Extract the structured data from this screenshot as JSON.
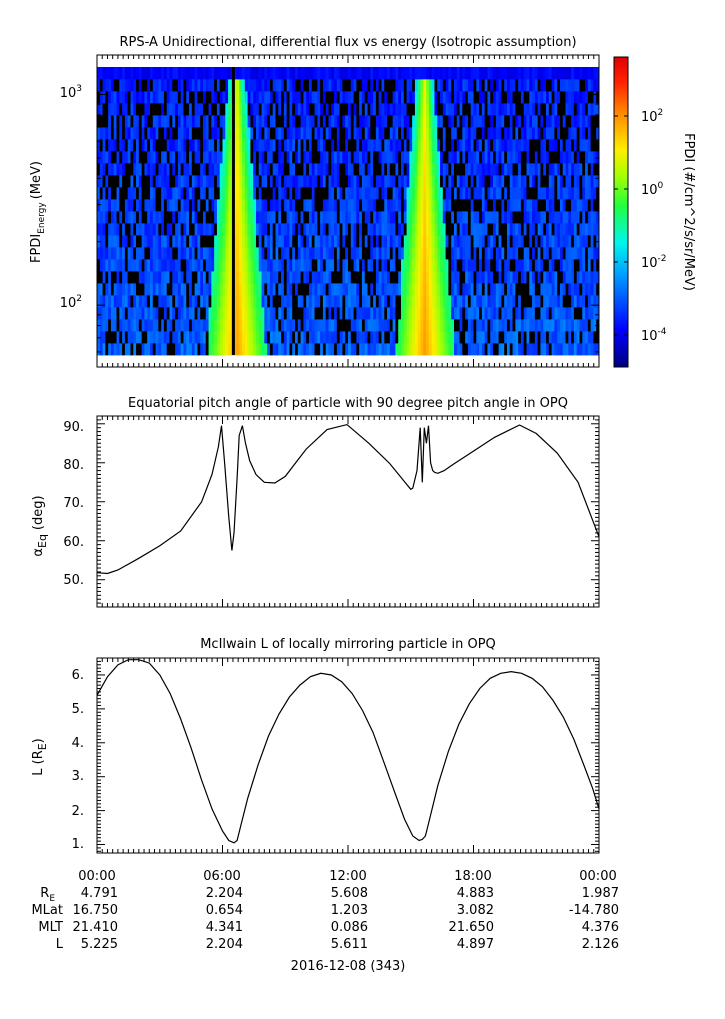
{
  "panels": [
    {
      "title": "RPS-A Unidirectional, differential flux vs energy (Isotropic assumption)",
      "ylabel_main": "FPDI",
      "ylabel_sub": "Energy",
      "ylabel_unit": "(MeV)",
      "ytick_labels": [
        {
          "base": "10",
          "exp": "3"
        },
        {
          "base": "10",
          "exp": "2"
        }
      ],
      "colorbar_label": "FPDI (#/cm^2/s/sr/MeV)",
      "colorbar_ticks": [
        {
          "base": "10",
          "exp": "2"
        },
        {
          "base": "10",
          "exp": "0"
        },
        {
          "base": "10",
          "exp": "-2"
        },
        {
          "base": "10",
          "exp": "-4"
        }
      ]
    },
    {
      "title": "Equatorial pitch angle of particle with 90 degree pitch angle in OPQ",
      "ylabel_main": "α",
      "ylabel_sub": "Eq",
      "ylabel_unit": "(deg)",
      "ytick_labels": [
        "90.",
        "80.",
        "70.",
        "60.",
        "50."
      ]
    },
    {
      "title": "McIlwain L of locally mirroring particle in OPQ",
      "ylabel_main": "L (R",
      "ylabel_sub": "E",
      "ylabel_unit": ")",
      "ytick_labels": [
        "6.",
        "5.",
        "4.",
        "3.",
        "2.",
        "1."
      ]
    }
  ],
  "xaxis": {
    "tick_labels": [
      "00:00",
      "06:00",
      "12:00",
      "18:00",
      "00:00"
    ],
    "date_label": "2016-12-08 (343)",
    "ephemeris": [
      {
        "label": "R",
        "sub": "E",
        "values": [
          "4.791",
          "2.204",
          "5.608",
          "4.883",
          "1.987"
        ]
      },
      {
        "label": "MLat",
        "sub": "",
        "values": [
          "16.750",
          "0.654",
          "1.203",
          "3.082",
          "-14.780"
        ]
      },
      {
        "label": "MLT",
        "sub": "",
        "values": [
          "21.410",
          "4.341",
          "0.086",
          "21.650",
          "4.376"
        ]
      },
      {
        "label": "L",
        "sub": "",
        "values": [
          "5.225",
          "2.204",
          "5.611",
          "4.897",
          "2.126"
        ]
      }
    ]
  },
  "chart_data": [
    {
      "type": "heatmap",
      "title": "RPS-A Unidirectional, differential flux vs energy (Isotropic assumption)",
      "xlabel": "2016-12-08 (343)",
      "ylabel": "FPDI Energy (MeV)",
      "x_range": [
        "2016-12-08 00:00",
        "2016-12-09 00:00"
      ],
      "y_scale": "log",
      "y_range_mev": [
        58,
        1350
      ],
      "colorbar": {
        "label": "FPDI (#/cm^2/s/sr/MeV)",
        "scale": "log",
        "range_log10": [
          -5,
          3
        ]
      },
      "features": [
        {
          "time": "06:40",
          "description": "high-flux V-shaped band (yellow to green)"
        },
        {
          "time": "15:40",
          "description": "high-flux V-shaped band (yellow to green)"
        }
      ]
    },
    {
      "type": "line",
      "title": "Equatorial pitch angle of particle with 90 degree pitch angle in OPQ",
      "xlabel": "2016-12-08 (343)",
      "ylabel": "αEq (deg)",
      "ylim": [
        43,
        92
      ],
      "x_hours": [
        0,
        0.5,
        1,
        2,
        3,
        4,
        5,
        5.5,
        5.8,
        5.95,
        6.1,
        6.3,
        6.45,
        6.55,
        6.7,
        6.8,
        6.95,
        7.1,
        7.3,
        7.6,
        8.0,
        8.5,
        9.0,
        9.5,
        10.0,
        11.0,
        11.95,
        13.0,
        14.0,
        14.8,
        15.0,
        15.1,
        15.3,
        15.45,
        15.55,
        15.65,
        15.75,
        15.85,
        15.95,
        16.05,
        16.15,
        16.3,
        16.6,
        17.0,
        18.0,
        19.0,
        20.2,
        21.0,
        22.0,
        23.0,
        24.0
      ],
      "y_values": [
        51.8,
        51.6,
        52.5,
        55.5,
        58.7,
        62.5,
        70.0,
        77.0,
        84.0,
        89.5,
        80.0,
        66.0,
        57.5,
        62.0,
        76.0,
        87.0,
        89.5,
        85.0,
        80.5,
        77.0,
        75.0,
        74.8,
        76.5,
        80.0,
        83.5,
        88.5,
        89.8,
        85.0,
        79.8,
        74.5,
        73.2,
        73.5,
        78.0,
        89.0,
        75.0,
        89.0,
        85.0,
        89.5,
        80.0,
        78.0,
        77.5,
        77.3,
        78.0,
        79.5,
        83.0,
        86.5,
        89.7,
        87.5,
        82.5,
        75.0,
        61.0
      ]
    },
    {
      "type": "line",
      "title": "McIlwain L of locally mirroring particle in OPQ",
      "xlabel": "2016-12-08 (343)",
      "ylabel": "L (RE)",
      "ylim": [
        0.75,
        6.5
      ],
      "x_hours": [
        0,
        0.5,
        1.0,
        1.5,
        2.0,
        2.5,
        3.0,
        3.5,
        4.0,
        4.5,
        5.0,
        5.5,
        6.0,
        6.3,
        6.55,
        6.7,
        6.85,
        7.2,
        7.7,
        8.2,
        8.7,
        9.2,
        9.7,
        10.2,
        10.7,
        11.2,
        11.7,
        12.2,
        12.7,
        13.2,
        13.7,
        14.2,
        14.7,
        15.1,
        15.4,
        15.55,
        15.7,
        15.9,
        16.3,
        16.8,
        17.3,
        17.8,
        18.3,
        18.8,
        19.3,
        19.8,
        20.3,
        20.8,
        21.3,
        21.8,
        22.3,
        22.8,
        23.3,
        23.7,
        24.0
      ],
      "y_values": [
        5.4,
        5.95,
        6.3,
        6.45,
        6.45,
        6.35,
        6.0,
        5.45,
        4.7,
        3.85,
        2.9,
        2.05,
        1.4,
        1.12,
        1.05,
        1.12,
        1.5,
        2.35,
        3.35,
        4.2,
        4.85,
        5.35,
        5.7,
        5.95,
        6.05,
        6.0,
        5.8,
        5.45,
        4.95,
        4.3,
        3.45,
        2.6,
        1.75,
        1.25,
        1.12,
        1.15,
        1.25,
        1.75,
        2.75,
        3.75,
        4.55,
        5.15,
        5.6,
        5.9,
        6.05,
        6.1,
        6.05,
        5.9,
        5.65,
        5.25,
        4.75,
        4.1,
        3.3,
        2.65,
        2.05
      ]
    }
  ]
}
